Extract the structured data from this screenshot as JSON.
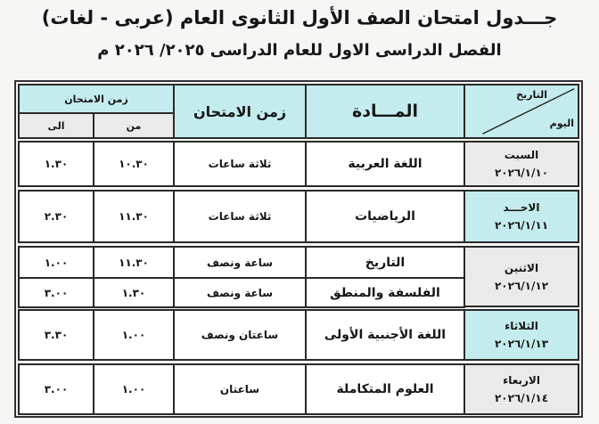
{
  "title": "جـــدول امتحان الصف الأول الثانوى العام (عربى - لغات)",
  "subtitle": "الفصل الدراسى الاول للعام الدراسى ٢٠٢٥/ ٢٠٢٦ م",
  "colors": {
    "header": "#c4ecee",
    "day_gray": "#eaeaea",
    "day_cyan": "#c4ecee"
  },
  "header": {
    "date_label": "التاريخ",
    "day_label": "اليوم",
    "subject": "المـــادة",
    "duration": "زمن الامتحان",
    "time_group": "زمن الامتحان",
    "from": "من",
    "to": "الى"
  },
  "rows": [
    {
      "day": "السبت",
      "date": "٢٠٢٦/١/١٠",
      "exams": [
        {
          "subject": "اللغة العربية",
          "duration": "ثلاثة ساعات",
          "from": "١٠.٣٠",
          "to": "١.٣٠"
        }
      ]
    },
    {
      "day": "الاحـــد",
      "date": "٢٠٢٦/١/١١",
      "exams": [
        {
          "subject": "الرياضيات",
          "duration": "ثلاثة ساعات",
          "from": "١١.٣٠",
          "to": "٢.٣٠"
        }
      ]
    },
    {
      "day": "الاثنين",
      "date": "٢٠٢٦/١/١٢",
      "exams": [
        {
          "subject": "التاريخ",
          "duration": "ساعة ونصف",
          "from": "١١.٣٠",
          "to": "١.٠٠"
        },
        {
          "subject": "الفلسفة والمنطق",
          "duration": "ساعة ونصف",
          "from": "١.٣٠",
          "to": "٣.٠٠"
        }
      ]
    },
    {
      "day": "الثلاثاء",
      "date": "٢٠٢٦/١/١٣",
      "exams": [
        {
          "subject": "اللغة الأجنبية الأولى",
          "duration": "ساعتان ونصف",
          "from": "١.٠٠",
          "to": "٣.٣٠"
        }
      ]
    },
    {
      "day": "الاربعاء",
      "date": "٢٠٢٦/١/١٤",
      "exams": [
        {
          "subject": "العلوم المتكاملة",
          "duration": "ساعتان",
          "from": "١.٠٠",
          "to": "٣.٠٠"
        }
      ]
    }
  ]
}
